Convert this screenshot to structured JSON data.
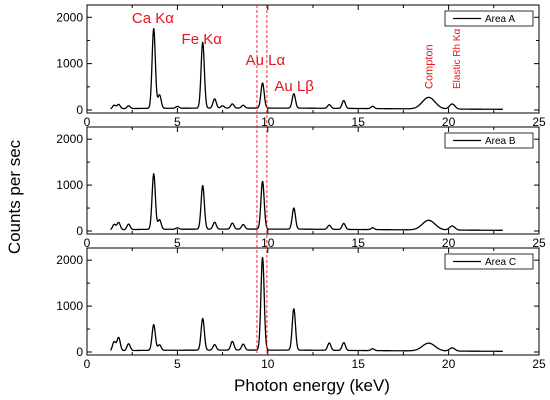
{
  "chart_data": {
    "type": "line",
    "xlabel": "Photon energy (keV)",
    "ylabel": "Counts per sec",
    "xlim": [
      0,
      25
    ],
    "ylim": [
      0,
      2200
    ],
    "x_ticks": [
      "0",
      "5",
      "10",
      "15",
      "20",
      "25"
    ],
    "y_ticks": [
      "0",
      "1000",
      "2000"
    ],
    "reference_lines_x": [
      9.4,
      9.95
    ],
    "line_color": "#000000",
    "annotation_color": "#e8141c",
    "peak_width": 0.09,
    "annotations": [
      {
        "text": "Ca Kα",
        "x": 3.7
      },
      {
        "text": "Fe Kα",
        "x": 6.4
      },
      {
        "text": "Au Lα",
        "x": 9.7
      },
      {
        "text": "Au Lβ",
        "x": 11.4
      },
      {
        "text": "Compton",
        "x": 18.9
      },
      {
        "text": "Elastic Rh Kα",
        "x": 20.2
      }
    ],
    "panels": [
      {
        "name": "Area A",
        "x_range": [
          1.3,
          23.0
        ],
        "baseline": [
          [
            1.3,
            20
          ],
          [
            2.0,
            28
          ],
          [
            3.0,
            35
          ],
          [
            6.0,
            40
          ],
          [
            9.0,
            42
          ],
          [
            12.0,
            40
          ],
          [
            16.0,
            30
          ],
          [
            20.0,
            20
          ],
          [
            23.0,
            15
          ]
        ],
        "peaks": [
          {
            "x": 1.5,
            "y": 80
          },
          {
            "x": 1.75,
            "y": 95
          },
          {
            "x": 2.3,
            "y": 60
          },
          {
            "x": 3.69,
            "y": 1720
          },
          {
            "x": 4.01,
            "y": 290
          },
          {
            "x": 5.0,
            "y": 40
          },
          {
            "x": 6.4,
            "y": 1420
          },
          {
            "x": 7.06,
            "y": 200
          },
          {
            "x": 7.5,
            "y": 50
          },
          {
            "x": 8.04,
            "y": 90
          },
          {
            "x": 8.64,
            "y": 60
          },
          {
            "x": 9.71,
            "y": 540
          },
          {
            "x": 11.44,
            "y": 310
          },
          {
            "x": 13.4,
            "y": 80
          },
          {
            "x": 14.2,
            "y": 170
          },
          {
            "x": 15.8,
            "y": 50
          },
          {
            "x": 18.9,
            "y": 250,
            "w": 0.35
          },
          {
            "x": 20.2,
            "y": 110,
            "w": 0.15
          }
        ]
      },
      {
        "name": "Area B",
        "x_range": [
          1.3,
          23.0
        ],
        "baseline": [
          [
            1.3,
            20
          ],
          [
            2.0,
            28
          ],
          [
            3.0,
            35
          ],
          [
            6.0,
            40
          ],
          [
            9.0,
            42
          ],
          [
            12.0,
            40
          ],
          [
            16.0,
            30
          ],
          [
            20.0,
            20
          ],
          [
            23.0,
            15
          ]
        ],
        "peaks": [
          {
            "x": 1.5,
            "y": 120
          },
          {
            "x": 1.75,
            "y": 160
          },
          {
            "x": 2.3,
            "y": 120
          },
          {
            "x": 3.69,
            "y": 1210
          },
          {
            "x": 4.01,
            "y": 210
          },
          {
            "x": 5.0,
            "y": 30
          },
          {
            "x": 6.4,
            "y": 950
          },
          {
            "x": 7.06,
            "y": 150
          },
          {
            "x": 8.04,
            "y": 130
          },
          {
            "x": 8.64,
            "y": 100
          },
          {
            "x": 9.71,
            "y": 1040
          },
          {
            "x": 11.44,
            "y": 460
          },
          {
            "x": 13.4,
            "y": 90
          },
          {
            "x": 14.2,
            "y": 130
          },
          {
            "x": 15.8,
            "y": 40
          },
          {
            "x": 18.9,
            "y": 210,
            "w": 0.35
          },
          {
            "x": 20.2,
            "y": 90,
            "w": 0.15
          }
        ]
      },
      {
        "name": "Area C",
        "x_range": [
          1.3,
          23.0
        ],
        "baseline": [
          [
            1.3,
            20
          ],
          [
            2.0,
            28
          ],
          [
            3.0,
            35
          ],
          [
            6.0,
            40
          ],
          [
            9.0,
            42
          ],
          [
            12.0,
            40
          ],
          [
            16.0,
            30
          ],
          [
            20.0,
            20
          ],
          [
            23.0,
            15
          ]
        ],
        "peaks": [
          {
            "x": 1.5,
            "y": 200
          },
          {
            "x": 1.75,
            "y": 290
          },
          {
            "x": 2.3,
            "y": 150
          },
          {
            "x": 3.69,
            "y": 560
          },
          {
            "x": 4.01,
            "y": 120
          },
          {
            "x": 6.4,
            "y": 690
          },
          {
            "x": 7.06,
            "y": 120
          },
          {
            "x": 8.04,
            "y": 190
          },
          {
            "x": 8.64,
            "y": 130
          },
          {
            "x": 9.71,
            "y": 2020
          },
          {
            "x": 11.44,
            "y": 900
          },
          {
            "x": 13.4,
            "y": 160
          },
          {
            "x": 14.2,
            "y": 170
          },
          {
            "x": 15.8,
            "y": 40
          },
          {
            "x": 18.9,
            "y": 170,
            "w": 0.35
          },
          {
            "x": 20.2,
            "y": 70,
            "w": 0.15
          }
        ]
      }
    ]
  }
}
